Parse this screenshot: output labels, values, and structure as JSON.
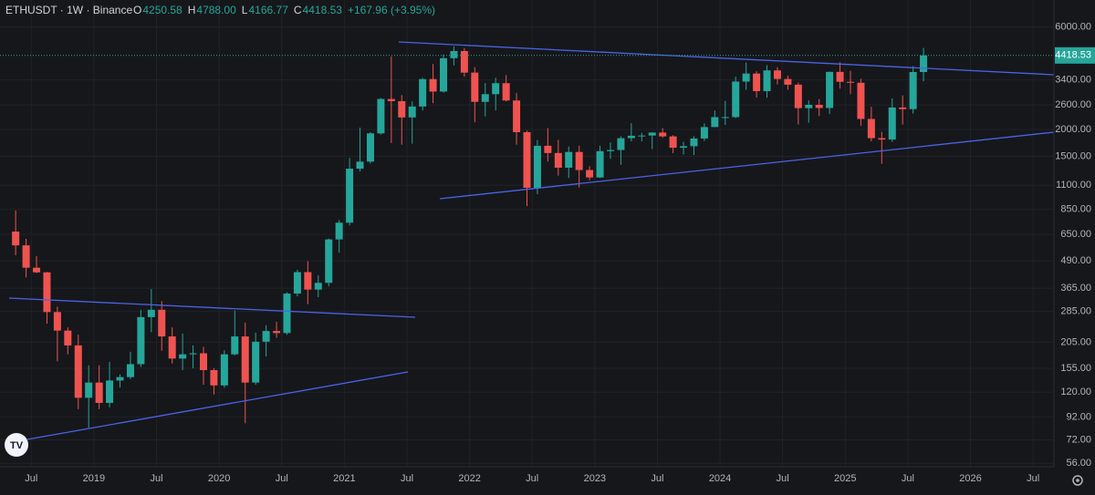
{
  "chart_data": {
    "type": "candlestick",
    "header": {
      "symbol": "ETHUSDT · 1W · Binance",
      "quote": [
        {
          "key": "O",
          "value": 4250.58
        },
        {
          "key": "H",
          "value": {
            "value": 4788,
            "label": "4788.00"
          }
        },
        {
          "key": "L",
          "value": 4166.77
        },
        {
          "key": "C",
          "value": 4418.53
        }
      ],
      "change": "+167.96 (+3.95%)"
    },
    "log_scale": true,
    "grid": true,
    "up_color": "#26a69a",
    "down_color": "#ef5350",
    "xlim": [
      "2018-04",
      "2026-09"
    ],
    "xticks": [
      {
        "value": "2018-07",
        "label": "Jul"
      },
      {
        "value": "2019-01",
        "label": "2019"
      },
      {
        "value": "2019-07",
        "label": "Jul"
      },
      {
        "value": "2020-01",
        "label": "2020"
      },
      {
        "value": "2020-07",
        "label": "Jul"
      },
      {
        "value": "2021-01",
        "label": "2021"
      },
      {
        "value": "2021-07",
        "label": "Jul"
      },
      {
        "value": "2022-01",
        "label": "2022"
      },
      {
        "value": "2022-07",
        "label": "Jul"
      },
      {
        "value": "2023-01",
        "label": "2023"
      },
      {
        "value": "2023-07",
        "label": "Jul"
      },
      {
        "value": "2024-01",
        "label": "2024"
      },
      {
        "value": "2024-07",
        "label": "Jul"
      },
      {
        "value": "2025-01",
        "label": "2025"
      },
      {
        "value": "2025-07",
        "label": "Jul"
      },
      {
        "value": "2026-01",
        "label": "2026"
      },
      {
        "value": "2026-07",
        "label": "Jul"
      }
    ],
    "ylim": [
      54,
      8000
    ],
    "yticks": [
      {
        "value": 6000,
        "label": "6000.00"
      },
      {
        "value": 3400,
        "label": "3400.00"
      },
      {
        "value": 2600,
        "label": "2600.00"
      },
      {
        "value": 2000,
        "label": "2000.00"
      },
      {
        "value": 1500,
        "label": "1500.00"
      },
      {
        "value": 1100,
        "label": "1100.00"
      },
      {
        "value": 850,
        "label": "850.00"
      },
      {
        "value": 650,
        "label": "650.00"
      },
      {
        "value": 490,
        "label": "490.00"
      },
      {
        "value": 365,
        "label": "365.00"
      },
      {
        "value": 285,
        "label": "285.00"
      },
      {
        "value": 205,
        "label": "205.00"
      },
      {
        "value": 155,
        "label": "155.00"
      },
      {
        "value": 120,
        "label": "120.00"
      },
      {
        "value": 92,
        "label": "92.00"
      },
      {
        "value": 72,
        "label": "72.00"
      },
      {
        "value": 56,
        "label": "56.00"
      }
    ],
    "x": [
      "2018-05",
      "2018-06",
      "2018-07",
      "2018-08",
      "2018-09",
      "2018-10",
      "2018-11",
      "2018-12",
      "2019-01",
      "2019-02",
      "2019-03",
      "2019-04",
      "2019-05",
      "2019-06",
      "2019-07",
      "2019-08",
      "2019-09",
      "2019-10",
      "2019-11",
      "2019-12",
      "2020-01",
      "2020-02",
      "2020-03",
      "2020-04",
      "2020-05",
      "2020-06",
      "2020-07",
      "2020-08",
      "2020-09",
      "2020-10",
      "2020-11",
      "2020-12",
      "2021-01",
      "2021-02",
      "2021-03",
      "2021-04",
      "2021-05",
      "2021-06",
      "2021-07",
      "2021-08",
      "2021-09",
      "2021-10",
      "2021-11",
      "2021-12",
      "2022-01",
      "2022-02",
      "2022-03",
      "2022-04",
      "2022-05",
      "2022-06",
      "2022-07",
      "2022-08",
      "2022-09",
      "2022-10",
      "2022-11",
      "2022-12",
      "2023-01",
      "2023-02",
      "2023-03",
      "2023-04",
      "2023-05",
      "2023-06",
      "2023-07",
      "2023-08",
      "2023-09",
      "2023-10",
      "2023-11",
      "2023-12",
      "2024-01",
      "2024-02",
      "2024-03",
      "2024-04",
      "2024-05",
      "2024-06",
      "2024-07",
      "2024-08",
      "2024-09",
      "2024-10",
      "2024-11",
      "2024-12",
      "2025-01",
      "2025-02",
      "2025-03",
      "2025-04",
      "2025-05",
      "2025-06",
      "2025-07",
      "2025-08"
    ],
    "open": [
      670,
      578,
      455,
      433,
      283,
      232,
      198,
      113,
      133,
      107,
      136,
      141,
      162,
      268,
      290,
      218,
      172,
      180,
      182,
      152,
      129,
      180,
      218,
      133,
      206,
      231,
      226,
      345,
      434,
      360,
      387,
      616,
      737,
      1314,
      1417,
      1918,
      2772,
      2707,
      2275,
      2557,
      3430,
      3001,
      4288,
      4631,
      3676,
      2688,
      2919,
      3282,
      2727,
      1942,
      1071,
      1679,
      1554,
      1328,
      1572,
      1295,
      1196,
      1585,
      1605,
      1822,
      1870,
      1874,
      1934,
      1857,
      1645,
      1671,
      1815,
      2052,
      2282,
      2283,
      3340,
      3640,
      3015,
      3765,
      3435,
      3231,
      2513,
      2603,
      2517,
      3705,
      3332,
      3298,
      2238,
      1822,
      1795,
      2530,
      2486,
      3700
    ],
    "high": [
      840,
      620,
      515,
      435,
      300,
      240,
      222,
      160,
      160,
      166,
      145,
      185,
      290,
      362,
      318,
      240,
      225,
      198,
      195,
      155,
      188,
      288,
      253,
      227,
      246,
      255,
      350,
      445,
      488,
      420,
      622,
      758,
      1475,
      2040,
      1945,
      2800,
      4372,
      2890,
      2700,
      3470,
      4030,
      4460,
      4870,
      4780,
      3900,
      3280,
      3480,
      3580,
      2960,
      1975,
      1785,
      2030,
      1790,
      1665,
      1680,
      1350,
      1680,
      1740,
      1860,
      2140,
      1930,
      1940,
      2030,
      1880,
      1750,
      1860,
      2135,
      2450,
      2715,
      3520,
      4093,
      3730,
      3980,
      3890,
      3560,
      3300,
      2730,
      2770,
      3720,
      4110,
      3745,
      3440,
      2550,
      1950,
      2790,
      2880,
      3940,
      4788
    ],
    "low": [
      520,
      410,
      430,
      250,
      167,
      180,
      100,
      82,
      100,
      102,
      126,
      138,
      157,
      228,
      187,
      163,
      152,
      155,
      130,
      117,
      126,
      178,
      86,
      130,
      176,
      215,
      222,
      335,
      308,
      332,
      372,
      535,
      715,
      1275,
      1390,
      1890,
      1730,
      1700,
      1718,
      2450,
      2650,
      2970,
      3970,
      3520,
      2160,
      2300,
      2450,
      2700,
      1700,
      880,
      1000,
      1420,
      1220,
      1190,
      1075,
      1160,
      1190,
      1460,
      1370,
      1760,
      1760,
      1620,
      1830,
      1550,
      1530,
      1520,
      1770,
      2050,
      2100,
      2260,
      3056,
      2815,
      2810,
      3240,
      3060,
      2110,
      2150,
      2310,
      2360,
      3100,
      2920,
      2080,
      1760,
      1385,
      1750,
      2110,
      2370,
      3350
    ],
    "close": [
      578,
      455,
      433,
      283,
      232,
      198,
      113,
      133,
      107,
      136,
      141,
      162,
      268,
      290,
      218,
      172,
      180,
      182,
      152,
      129,
      180,
      218,
      133,
      206,
      231,
      226,
      345,
      434,
      360,
      387,
      616,
      737,
      1314,
      1417,
      1918,
      2772,
      2707,
      2275,
      2557,
      3430,
      3001,
      4288,
      4631,
      3676,
      2688,
      2919,
      3282,
      2727,
      1942,
      1071,
      1679,
      1554,
      1328,
      1572,
      1295,
      1196,
      1585,
      1605,
      1822,
      1870,
      1874,
      1934,
      1857,
      1645,
      1671,
      1815,
      2052,
      2282,
      2283,
      3340,
      3640,
      3015,
      3765,
      3435,
      3231,
      2513,
      2603,
      2517,
      3705,
      3332,
      3298,
      2238,
      1822,
      1795,
      2530,
      2486,
      3700,
      4418.53
    ]
  }
}
